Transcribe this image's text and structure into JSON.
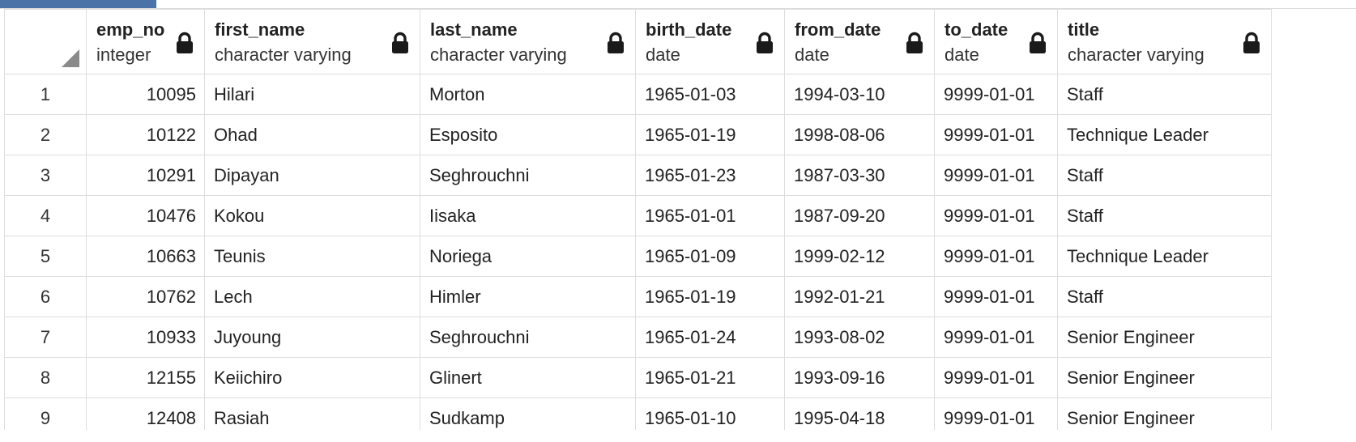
{
  "columns": [
    {
      "name": "emp_no",
      "type": "integer",
      "align": "right"
    },
    {
      "name": "first_name",
      "type": "character varying",
      "align": "left"
    },
    {
      "name": "last_name",
      "type": "character varying",
      "align": "left"
    },
    {
      "name": "birth_date",
      "type": "date",
      "align": "left"
    },
    {
      "name": "from_date",
      "type": "date",
      "align": "left"
    },
    {
      "name": "to_date",
      "type": "date",
      "align": "left"
    },
    {
      "name": "title",
      "type": "character varying",
      "align": "left"
    }
  ],
  "rows": [
    {
      "n": "1",
      "cells": [
        "10095",
        "Hilari",
        "Morton",
        "1965-01-03",
        "1994-03-10",
        "9999-01-01",
        "Staff"
      ]
    },
    {
      "n": "2",
      "cells": [
        "10122",
        "Ohad",
        "Esposito",
        "1965-01-19",
        "1998-08-06",
        "9999-01-01",
        "Technique Leader"
      ]
    },
    {
      "n": "3",
      "cells": [
        "10291",
        "Dipayan",
        "Seghrouchni",
        "1965-01-23",
        "1987-03-30",
        "9999-01-01",
        "Staff"
      ]
    },
    {
      "n": "4",
      "cells": [
        "10476",
        "Kokou",
        "Iisaka",
        "1965-01-01",
        "1987-09-20",
        "9999-01-01",
        "Staff"
      ]
    },
    {
      "n": "5",
      "cells": [
        "10663",
        "Teunis",
        "Noriega",
        "1965-01-09",
        "1999-02-12",
        "9999-01-01",
        "Technique Leader"
      ]
    },
    {
      "n": "6",
      "cells": [
        "10762",
        "Lech",
        "Himler",
        "1965-01-19",
        "1992-01-21",
        "9999-01-01",
        "Staff"
      ]
    },
    {
      "n": "7",
      "cells": [
        "10933",
        "Juyoung",
        "Seghrouchni",
        "1965-01-24",
        "1993-08-02",
        "9999-01-01",
        "Senior Engineer"
      ]
    },
    {
      "n": "8",
      "cells": [
        "12155",
        "Keiichiro",
        "Glinert",
        "1965-01-21",
        "1993-09-16",
        "9999-01-01",
        "Senior Engineer"
      ]
    },
    {
      "n": "9",
      "cells": [
        "12408",
        "Rasiah",
        "Sudkamp",
        "1965-01-10",
        "1995-04-18",
        "9999-01-01",
        "Senior Engineer"
      ]
    }
  ],
  "icons": {
    "column_lock": "lock-icon",
    "select_all": "select-all-corner-icon"
  },
  "colors": {
    "accent": "#4a74a8",
    "grid_line": "#dedede",
    "lock": "#1a1a1a"
  }
}
